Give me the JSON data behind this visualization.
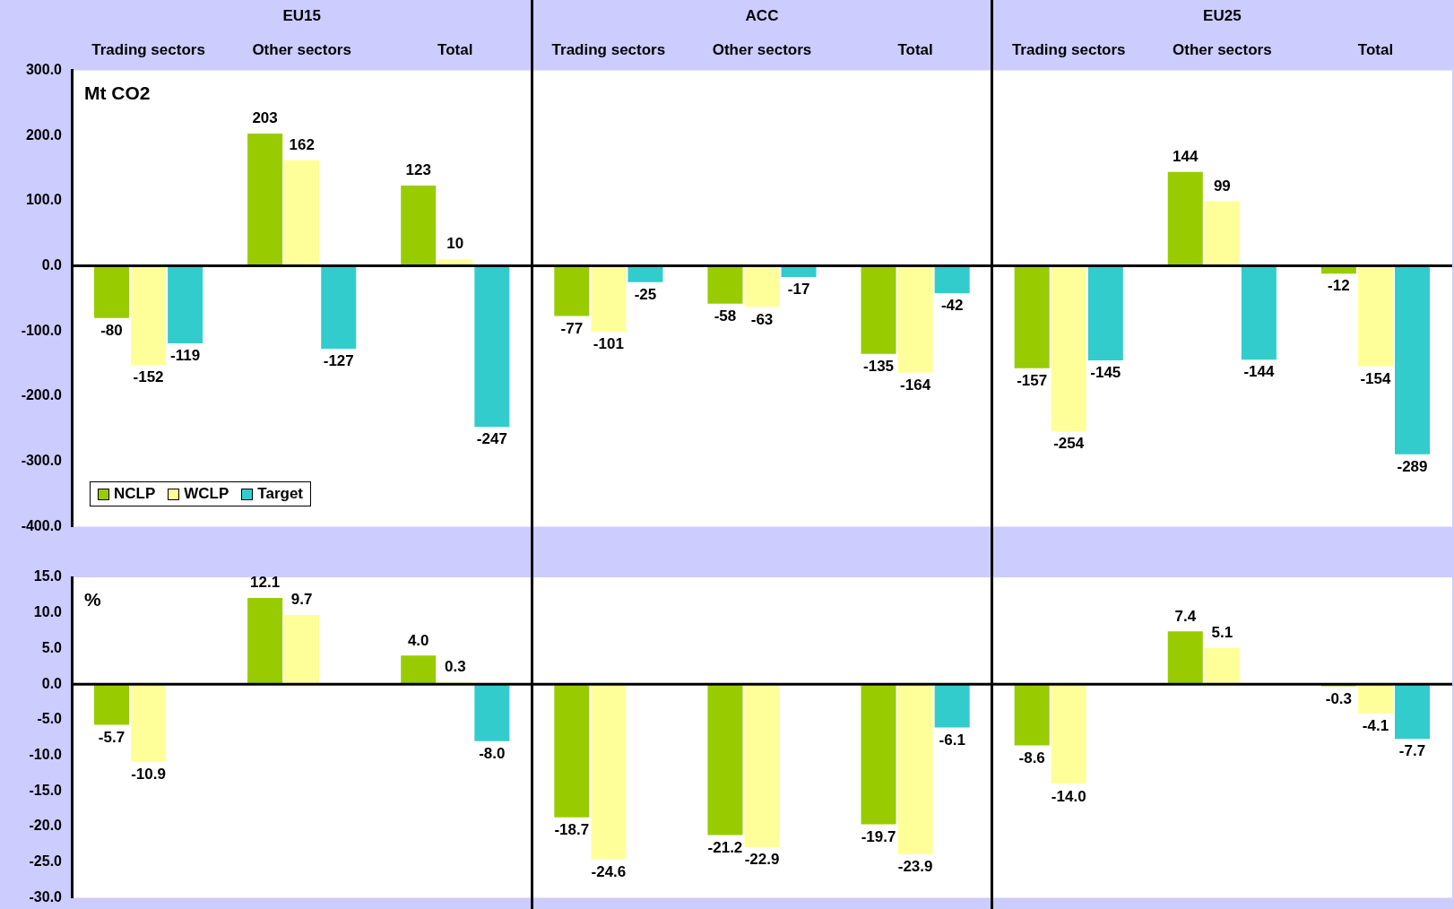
{
  "chart_data": [
    {
      "type": "bar",
      "ylabel": "Mt CO2",
      "annotations": [
        "EU15",
        "ACC",
        "EU25"
      ],
      "categories": [
        "Trading sectors",
        "Other sectors",
        "Total",
        "Trading sectors",
        "Other sectors",
        "Total",
        "Trading sectors",
        "Other sectors",
        "Total"
      ],
      "series": [
        {
          "name": "NCLP",
          "color": "#99cc00",
          "values": [
            -80,
            203,
            123,
            -77,
            -58,
            -135,
            -157,
            144,
            -12
          ]
        },
        {
          "name": "WCLP",
          "color": "#ffff99",
          "values": [
            -152,
            162,
            10,
            -101,
            -63,
            -164,
            -254,
            99,
            -154
          ]
        },
        {
          "name": "Target",
          "color": "#33cccc",
          "values": [
            -119,
            -127,
            -247,
            -25,
            -17,
            -42,
            -145,
            -144,
            -289
          ]
        }
      ],
      "data_labels": true,
      "legend": "bottom left",
      "grid": false,
      "ref_lines": [
        {
          "axis": "y",
          "value": 0,
          "color": "#000000"
        }
      ],
      "ylim": [
        -400,
        300
      ],
      "yticks": [
        {
          "value": -400,
          "label": "-400.0"
        },
        {
          "value": -300,
          "label": "-300.0"
        },
        {
          "value": -200,
          "label": "-200.0"
        },
        {
          "value": -100,
          "label": "-100.0"
        },
        {
          "value": 0,
          "label": "0.0"
        },
        {
          "value": 100,
          "label": "100.0"
        },
        {
          "value": 200,
          "label": "200.0"
        },
        {
          "value": 300,
          "label": "300.0"
        }
      ]
    },
    {
      "type": "bar",
      "ylabel": "%",
      "categories": [
        null,
        null,
        null,
        null,
        null,
        null,
        null,
        null,
        null
      ],
      "series": [
        {
          "color": "#99cc00",
          "values": [
            -5.7,
            12.1,
            4.0,
            -18.7,
            -21.2,
            -19.7,
            -8.6,
            7.4,
            -0.3
          ],
          "value_labels": [
            "-5.7",
            "12.1",
            "4.0",
            "-18.7",
            "-21.2",
            "-19.7",
            "-8.6",
            "7.4",
            "-0.3"
          ]
        },
        {
          "color": "#ffff99",
          "values": [
            -10.9,
            9.7,
            0.3,
            -24.6,
            -22.9,
            -23.9,
            -14.0,
            5.1,
            -4.1
          ],
          "value_labels": [
            "-10.9",
            "9.7",
            "0.3",
            "-24.6",
            "-22.9",
            "-23.9",
            "-14.0",
            "5.1",
            "-4.1"
          ]
        },
        {
          "color": "#33cccc",
          "values": [
            null,
            null,
            -8.0,
            null,
            null,
            -6.1,
            null,
            null,
            -7.7
          ],
          "value_labels": [
            null,
            null,
            "-8.0",
            null,
            null,
            "-6.1",
            null,
            null,
            "-7.7"
          ]
        }
      ],
      "legend": false,
      "grid": false,
      "ref_lines": [
        {
          "axis": "y",
          "value": 0,
          "color": "#000000"
        }
      ],
      "tick_labels": "y",
      "ylim": [
        -30,
        15
      ],
      "yticks": [
        {
          "value": -30,
          "label": "-30.0"
        },
        {
          "value": -25,
          "label": "-25.0"
        },
        {
          "value": -20,
          "label": "-20.0"
        },
        {
          "value": -15,
          "label": "-15.0"
        },
        {
          "value": -10,
          "label": "-10.0"
        },
        {
          "value": -5,
          "label": "-5.0"
        },
        {
          "value": 0,
          "label": "0.0"
        },
        {
          "value": 5,
          "label": "5.0"
        },
        {
          "value": 10,
          "label": "10.0"
        },
        {
          "value": 15,
          "label": "15.0"
        }
      ]
    }
  ]
}
